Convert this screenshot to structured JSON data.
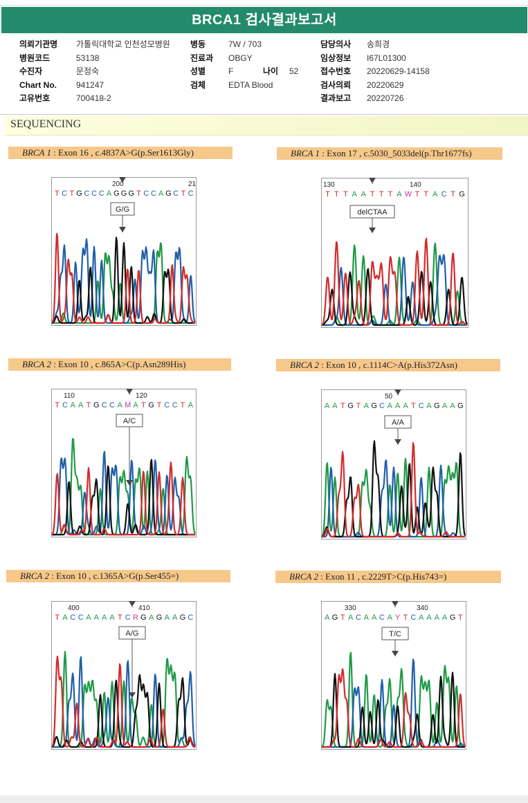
{
  "title": "BRCA1 검사결과보고서",
  "info": {
    "col1": [
      {
        "label": "의뢰기관명",
        "value": "가톨릭대학교 인천성모병원"
      },
      {
        "label": "병원코드",
        "value": "53138"
      },
      {
        "label": "수진자",
        "value": "문정숙"
      },
      {
        "label": "Chart No.",
        "value": "941247"
      },
      {
        "label": "고유번호",
        "value": "700418-2"
      }
    ],
    "col2": [
      {
        "label": "병동",
        "value": "7W / 703"
      },
      {
        "label": "진료과",
        "value": "OBGY"
      },
      {
        "label": "성별",
        "value": "F"
      },
      {
        "label": "검체",
        "value": "EDTA Blood"
      }
    ],
    "age": {
      "label": "나이",
      "value": "52"
    },
    "col3": [
      {
        "label": "담당의사",
        "value": "송희경"
      },
      {
        "label": "임상정보",
        "value": "I67L01300"
      },
      {
        "label": "접수번호",
        "value": "20220629-14158"
      },
      {
        "label": "검사의뢰",
        "value": "20220629"
      },
      {
        "label": "결과보고",
        "value": "20220726"
      }
    ]
  },
  "section_title": "SEQUENCING",
  "variants": [
    {
      "gene": "BRCA 1",
      "detail": " : Exon 16 , c.4837A>G(p.Ser1613Gly)",
      "pos_labels": [
        "200",
        "21"
      ],
      "sequence": "TCTGCCCAGGGTCCAGCTC",
      "call": "G/G",
      "highlight_index": 8
    },
    {
      "gene": "BRCA 1",
      "detail": " : Exon 17 , c.5030_5033del(p.Thr1677fs)",
      "pos_labels": [
        "130",
        "140"
      ],
      "sequence": "TTTAATTTAWTTACTG",
      "call": "delCTAA",
      "highlight_index": 7
    },
    {
      "gene": "BRCA 2",
      "detail": " : Exon 10 , c.865A>C(p.Asn289His)",
      "pos_labels": [
        "110",
        "120"
      ],
      "sequence": "TCAATGCCAMATGTCCTA",
      "call": "A/C",
      "highlight_index": 9
    },
    {
      "gene": "BRCA 2",
      "detail": " : Exon 10 , c.1114C>A(p.His372Asn)",
      "pos_labels": [
        "50"
      ],
      "sequence": "AATGTAGCAAATCAGAAG",
      "call": "A/A",
      "highlight_index": 9
    },
    {
      "gene": "BRCA 2",
      "detail": " : Exon 10 , c.1365A>G(p.Ser455=)",
      "pos_labels": [
        "400",
        "410"
      ],
      "sequence": "TACCAAAATCRGAGAAGC",
      "call": "A/G",
      "highlight_index": 10
    },
    {
      "gene": "BRCA 2",
      "detail": " : Exon 11 , c.2229T>C(p.His743=)",
      "pos_labels": [
        "330",
        "340"
      ],
      "sequence": "AGTACAACAYTCAAAAGT",
      "call": "T/C",
      "highlight_index": 9
    }
  ],
  "colors": {
    "title_bg": "#238a6a",
    "label_bg": "#f6c88a",
    "A": "#1e9a46",
    "C": "#1f5faa",
    "G": "#111111",
    "T": "#d42a2a",
    "ambiguous": "#c0399b"
  }
}
